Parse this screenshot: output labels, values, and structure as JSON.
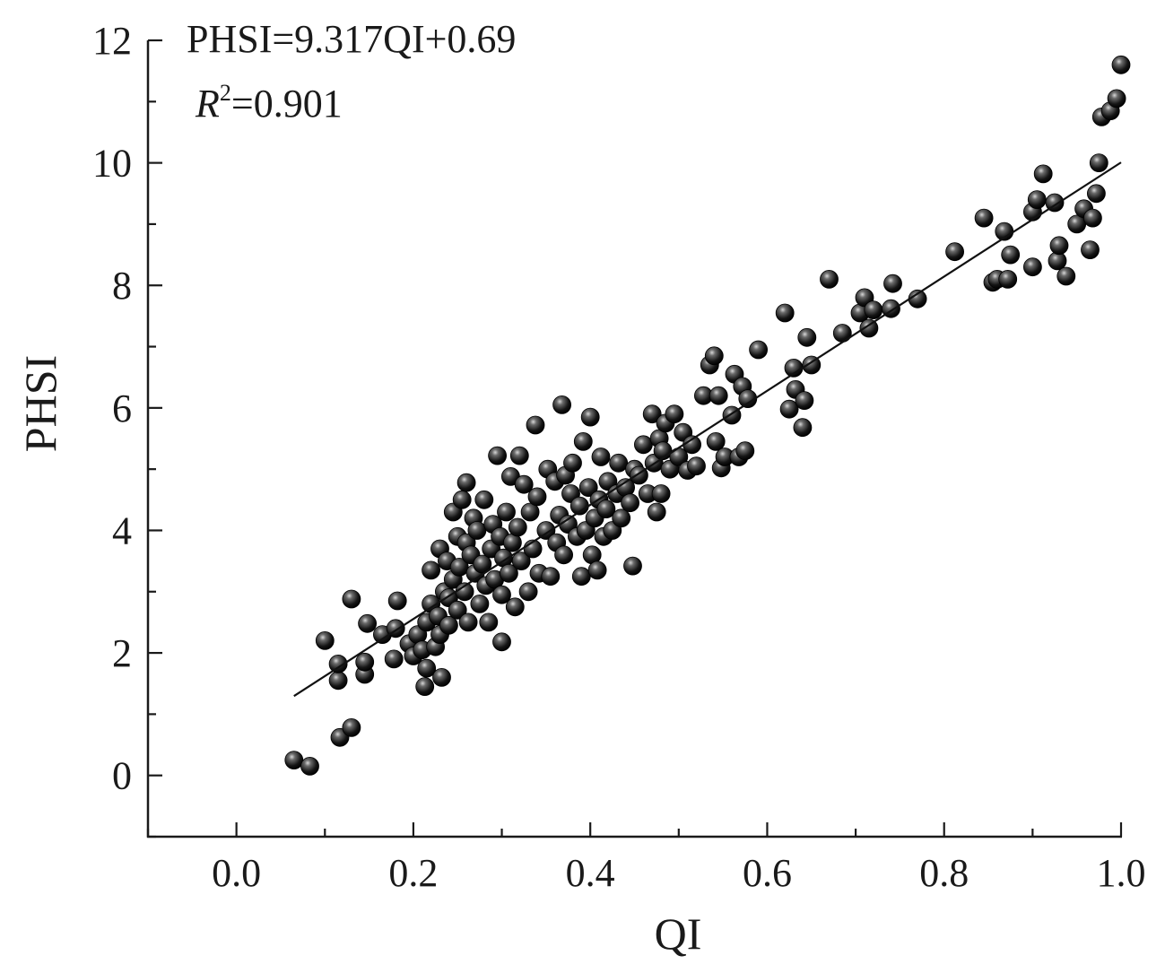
{
  "chart_data": {
    "type": "scatter",
    "xlabel": "QI",
    "ylabel": "PHSI",
    "xlim": [
      -0.1,
      1.0
    ],
    "ylim": [
      -1.0,
      12.0
    ],
    "xticks": [
      "0.0",
      "0.2",
      "0.4",
      "0.6",
      "0.8",
      "1.0"
    ],
    "yticks": [
      "0",
      "2",
      "4",
      "6",
      "8",
      "10",
      "12"
    ],
    "annotations": {
      "equation": "PHSI=9.317QI+0.69",
      "r2_symbol": "R",
      "r2_exponent": "2",
      "r2_value": "=0.901"
    },
    "fit_line": {
      "slope": 9.317,
      "intercept": 0.69,
      "x_range": [
        0.065,
        1.0
      ]
    },
    "marker_color": "#111111",
    "points": [
      [
        0.065,
        0.25
      ],
      [
        0.083,
        0.15
      ],
      [
        0.117,
        0.62
      ],
      [
        0.13,
        0.78
      ],
      [
        0.1,
        2.2
      ],
      [
        0.115,
        1.55
      ],
      [
        0.115,
        1.82
      ],
      [
        0.13,
        2.88
      ],
      [
        0.145,
        1.65
      ],
      [
        0.145,
        1.85
      ],
      [
        0.148,
        2.48
      ],
      [
        0.165,
        2.3
      ],
      [
        0.178,
        1.9
      ],
      [
        0.18,
        2.4
      ],
      [
        0.182,
        2.85
      ],
      [
        0.195,
        2.15
      ],
      [
        0.2,
        1.95
      ],
      [
        0.205,
        2.3
      ],
      [
        0.21,
        2.05
      ],
      [
        0.213,
        1.45
      ],
      [
        0.215,
        1.75
      ],
      [
        0.215,
        2.5
      ],
      [
        0.22,
        3.35
      ],
      [
        0.22,
        2.8
      ],
      [
        0.225,
        2.1
      ],
      [
        0.228,
        2.6
      ],
      [
        0.23,
        3.7
      ],
      [
        0.23,
        2.3
      ],
      [
        0.232,
        1.6
      ],
      [
        0.235,
        3.0
      ],
      [
        0.238,
        3.5
      ],
      [
        0.24,
        2.9
      ],
      [
        0.24,
        2.45
      ],
      [
        0.245,
        4.3
      ],
      [
        0.245,
        3.2
      ],
      [
        0.25,
        2.7
      ],
      [
        0.25,
        3.9
      ],
      [
        0.252,
        3.4
      ],
      [
        0.255,
        4.5
      ],
      [
        0.258,
        3.0
      ],
      [
        0.26,
        3.8
      ],
      [
        0.26,
        4.78
      ],
      [
        0.262,
        2.5
      ],
      [
        0.265,
        3.6
      ],
      [
        0.268,
        4.2
      ],
      [
        0.27,
        3.3
      ],
      [
        0.272,
        4.0
      ],
      [
        0.275,
        2.8
      ],
      [
        0.278,
        3.45
      ],
      [
        0.28,
        4.5
      ],
      [
        0.282,
        3.1
      ],
      [
        0.285,
        2.5
      ],
      [
        0.288,
        3.7
      ],
      [
        0.29,
        4.1
      ],
      [
        0.292,
        3.2
      ],
      [
        0.295,
        5.22
      ],
      [
        0.298,
        3.9
      ],
      [
        0.3,
        2.95
      ],
      [
        0.3,
        2.18
      ],
      [
        0.302,
        3.55
      ],
      [
        0.305,
        4.3
      ],
      [
        0.308,
        3.3
      ],
      [
        0.31,
        4.88
      ],
      [
        0.312,
        3.8
      ],
      [
        0.315,
        2.75
      ],
      [
        0.318,
        4.05
      ],
      [
        0.32,
        5.22
      ],
      [
        0.322,
        3.5
      ],
      [
        0.325,
        4.75
      ],
      [
        0.33,
        3.0
      ],
      [
        0.332,
        4.3
      ],
      [
        0.335,
        3.7
      ],
      [
        0.338,
        5.72
      ],
      [
        0.34,
        4.55
      ],
      [
        0.342,
        3.3
      ],
      [
        0.35,
        4.0
      ],
      [
        0.352,
        5.0
      ],
      [
        0.355,
        3.25
      ],
      [
        0.36,
        4.8
      ],
      [
        0.362,
        3.8
      ],
      [
        0.365,
        4.25
      ],
      [
        0.368,
        6.05
      ],
      [
        0.37,
        3.6
      ],
      [
        0.372,
        4.9
      ],
      [
        0.375,
        4.1
      ],
      [
        0.378,
        4.6
      ],
      [
        0.38,
        5.1
      ],
      [
        0.385,
        3.9
      ],
      [
        0.388,
        4.4
      ],
      [
        0.39,
        3.25
      ],
      [
        0.392,
        5.45
      ],
      [
        0.395,
        4.0
      ],
      [
        0.398,
        4.7
      ],
      [
        0.4,
        5.85
      ],
      [
        0.402,
        3.6
      ],
      [
        0.405,
        4.2
      ],
      [
        0.408,
        3.35
      ],
      [
        0.41,
        4.5
      ],
      [
        0.412,
        5.2
      ],
      [
        0.415,
        3.9
      ],
      [
        0.418,
        4.35
      ],
      [
        0.42,
        4.8
      ],
      [
        0.425,
        4.0
      ],
      [
        0.43,
        4.6
      ],
      [
        0.432,
        5.1
      ],
      [
        0.435,
        4.2
      ],
      [
        0.44,
        4.7
      ],
      [
        0.445,
        4.45
      ],
      [
        0.448,
        3.42
      ],
      [
        0.45,
        5.0
      ],
      [
        0.455,
        4.9
      ],
      [
        0.46,
        5.4
      ],
      [
        0.465,
        4.6
      ],
      [
        0.47,
        5.9
      ],
      [
        0.472,
        5.1
      ],
      [
        0.475,
        4.3
      ],
      [
        0.478,
        5.5
      ],
      [
        0.48,
        4.6
      ],
      [
        0.482,
        5.3
      ],
      [
        0.485,
        5.75
      ],
      [
        0.49,
        5.0
      ],
      [
        0.495,
        5.9
      ],
      [
        0.5,
        5.2
      ],
      [
        0.505,
        5.6
      ],
      [
        0.51,
        4.98
      ],
      [
        0.515,
        5.4
      ],
      [
        0.52,
        5.05
      ],
      [
        0.528,
        6.2
      ],
      [
        0.535,
        6.7
      ],
      [
        0.54,
        6.85
      ],
      [
        0.542,
        5.45
      ],
      [
        0.545,
        6.2
      ],
      [
        0.548,
        5.02
      ],
      [
        0.552,
        5.2
      ],
      [
        0.56,
        5.88
      ],
      [
        0.563,
        6.55
      ],
      [
        0.568,
        5.2
      ],
      [
        0.572,
        6.35
      ],
      [
        0.575,
        5.3
      ],
      [
        0.578,
        6.15
      ],
      [
        0.59,
        6.95
      ],
      [
        0.62,
        7.55
      ],
      [
        0.625,
        5.98
      ],
      [
        0.63,
        6.65
      ],
      [
        0.632,
        6.3
      ],
      [
        0.64,
        5.68
      ],
      [
        0.642,
        6.12
      ],
      [
        0.645,
        7.15
      ],
      [
        0.65,
        6.7
      ],
      [
        0.67,
        8.1
      ],
      [
        0.685,
        7.22
      ],
      [
        0.705,
        7.55
      ],
      [
        0.71,
        7.8
      ],
      [
        0.715,
        7.3
      ],
      [
        0.72,
        7.6
      ],
      [
        0.74,
        7.62
      ],
      [
        0.742,
        8.03
      ],
      [
        0.77,
        7.78
      ],
      [
        0.812,
        8.55
      ],
      [
        0.845,
        9.1
      ],
      [
        0.855,
        8.05
      ],
      [
        0.86,
        8.1
      ],
      [
        0.868,
        8.88
      ],
      [
        0.872,
        8.1
      ],
      [
        0.875,
        8.5
      ],
      [
        0.9,
        8.3
      ],
      [
        0.9,
        9.2
      ],
      [
        0.905,
        9.4
      ],
      [
        0.912,
        9.82
      ],
      [
        0.925,
        9.35
      ],
      [
        0.928,
        8.4
      ],
      [
        0.93,
        8.65
      ],
      [
        0.938,
        8.15
      ],
      [
        0.95,
        9.0
      ],
      [
        0.958,
        9.25
      ],
      [
        0.965,
        8.58
      ],
      [
        0.968,
        9.1
      ],
      [
        0.972,
        9.5
      ],
      [
        0.975,
        10.0
      ],
      [
        0.978,
        10.75
      ],
      [
        0.988,
        10.85
      ],
      [
        0.995,
        11.05
      ],
      [
        1.0,
        11.6
      ]
    ]
  }
}
